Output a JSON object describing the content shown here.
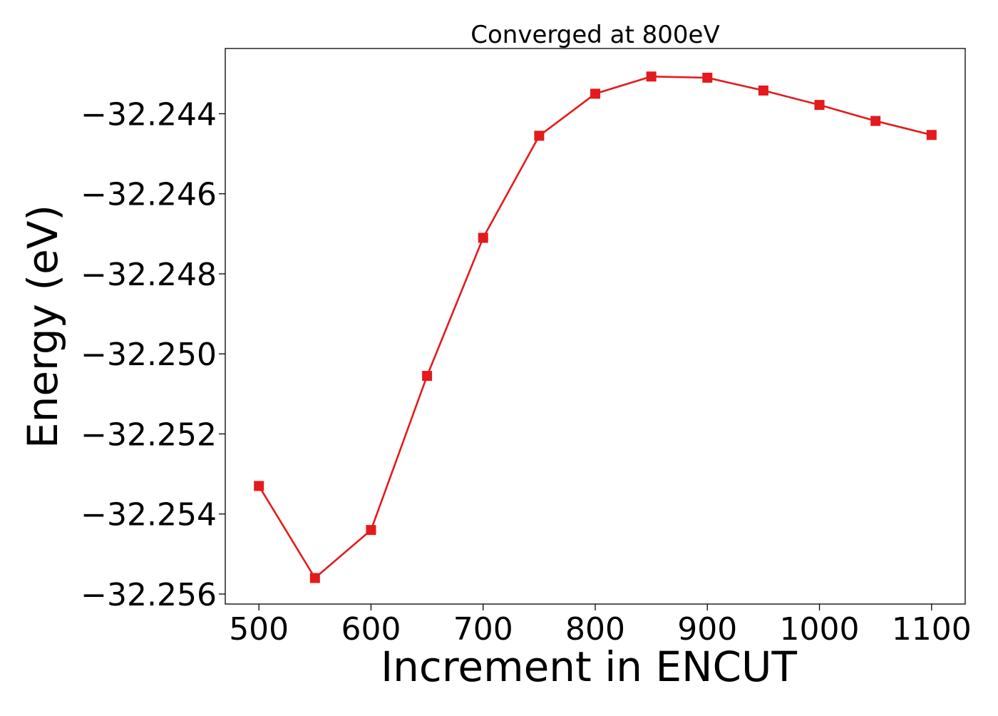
{
  "chart_data": {
    "type": "line",
    "title": "Converged at 800eV",
    "xlabel": "Increment in ENCUT",
    "ylabel": "Energy (eV)",
    "x": [
      500,
      550,
      600,
      650,
      700,
      750,
      800,
      850,
      900,
      950,
      1000,
      1050,
      1100
    ],
    "series": [
      {
        "values": [
          -32.2533,
          -32.2556,
          -32.2544,
          -32.25055,
          -32.2471,
          -32.24455,
          -32.2435,
          -32.24307,
          -32.2431,
          -32.24342,
          -32.24378,
          -32.24418,
          -32.24453
        ],
        "color": "#e41a1c",
        "marker": "square"
      }
    ],
    "xticks": [
      500,
      600,
      700,
      800,
      900,
      1000,
      1100
    ],
    "xtick_labels": [
      "500",
      "600",
      "700",
      "800",
      "900",
      "1000",
      "1100"
    ],
    "yticks": [
      -32.244,
      -32.246,
      -32.248,
      -32.25,
      -32.252,
      -32.254,
      -32.256
    ],
    "ytick_labels": [
      "−32.244",
      "−32.246",
      "−32.248",
      "−32.250",
      "−32.252",
      "−32.254",
      "−32.256"
    ],
    "xlim": [
      470,
      1130
    ],
    "ylim": [
      -32.25625,
      -32.24237
    ],
    "grid": false,
    "legend": "none"
  }
}
